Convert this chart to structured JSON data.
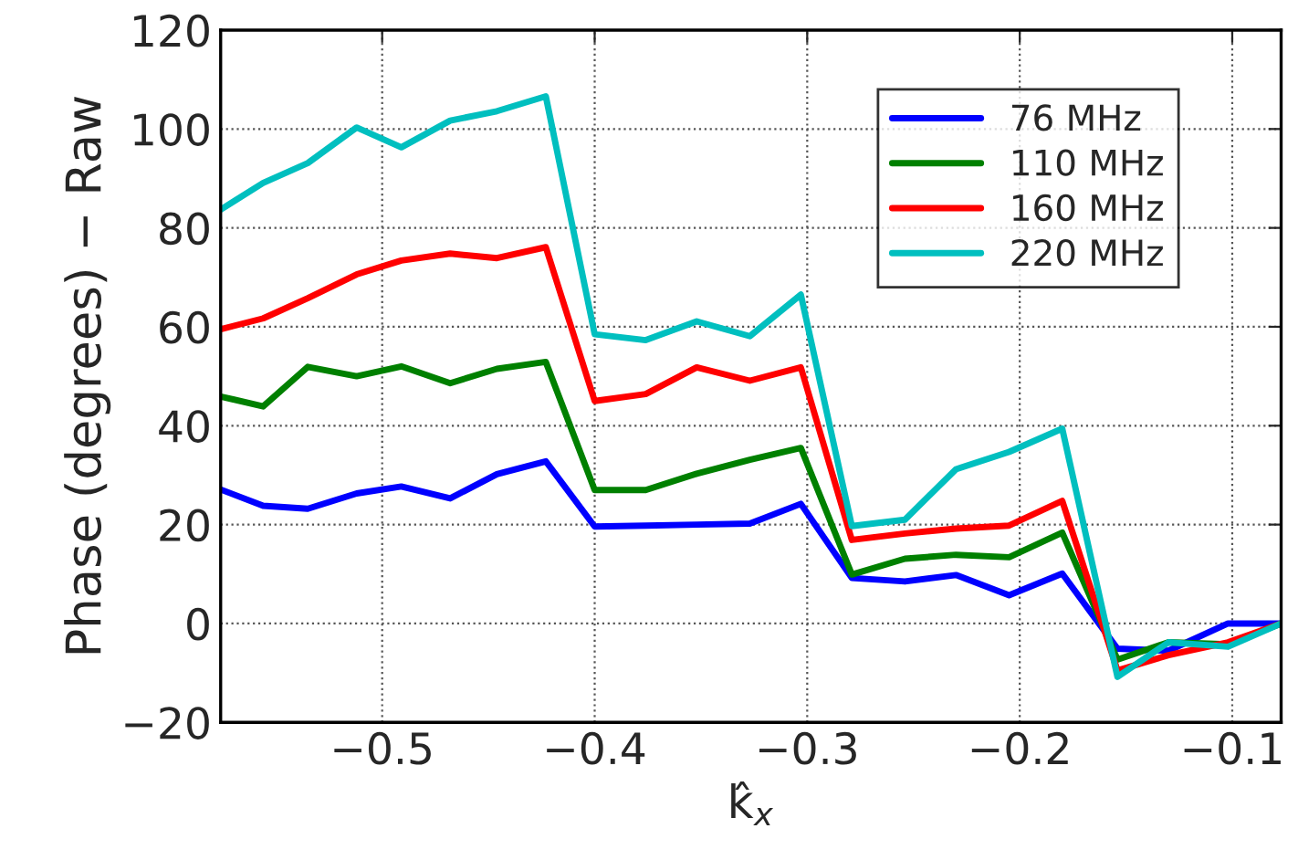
{
  "chart_data": {
    "type": "line",
    "xlabel": "k̂$_{x}$",
    "ylabel": "Phase (degrees) − Raw",
    "x": [
      -0.576,
      -0.556,
      -0.535,
      -0.512,
      -0.491,
      -0.468,
      -0.446,
      -0.423,
      -0.4,
      -0.376,
      -0.352,
      -0.327,
      -0.303,
      -0.279,
      -0.254,
      -0.23,
      -0.205,
      -0.18,
      -0.154,
      -0.13,
      -0.102,
      -0.077
    ],
    "series": [
      {
        "name": "76 MHz",
        "color": "#0000ff",
        "values": [
          27.1,
          23.8,
          23.2,
          26.3,
          27.7,
          25.3,
          30.2,
          32.8,
          19.6,
          19.8,
          20.0,
          20.2,
          24.2,
          9.2,
          8.5,
          9.8,
          5.7,
          10.1,
          -5.1,
          -5.5,
          0,
          0
        ]
      },
      {
        "name": "110 MHz",
        "color": "#008000",
        "values": [
          45.9,
          43.9,
          51.9,
          50.0,
          52.0,
          48.6,
          51.5,
          52.9,
          27.0,
          27.0,
          30.3,
          33.1,
          35.5,
          9.9,
          13.1,
          13.9,
          13.4,
          18.4,
          -7.3,
          -3.8,
          -4.2,
          0
        ]
      },
      {
        "name": "160 MHz",
        "color": "#ff0000",
        "values": [
          59.5,
          61.7,
          65.8,
          70.6,
          73.4,
          74.8,
          73.9,
          76.1,
          45.0,
          46.4,
          51.8,
          49.1,
          51.8,
          16.9,
          18.2,
          19.2,
          19.8,
          24.8,
          -9.5,
          -6.4,
          -3.8,
          0
        ]
      },
      {
        "name": "220 MHz",
        "color": "#00bfbf",
        "values": [
          83.7,
          89.1,
          93.1,
          100.3,
          96.3,
          101.7,
          103.6,
          106.6,
          58.5,
          57.3,
          61.1,
          58.1,
          66.5,
          19.7,
          21.0,
          31.2,
          34.7,
          39.4,
          -10.8,
          -3.8,
          -4.7,
          0
        ]
      }
    ],
    "xlim": [
      -0.576,
      -0.077
    ],
    "xticks": [
      {
        "value": -0.5,
        "label": "−0.5"
      },
      {
        "value": -0.4,
        "label": "−0.4"
      },
      {
        "value": -0.3,
        "label": "−0.3"
      },
      {
        "value": -0.2,
        "label": "−0.2"
      },
      {
        "value": -0.1,
        "label": "−0.1"
      }
    ],
    "ylim": [
      -20,
      120
    ],
    "yticks": [
      {
        "value": -20,
        "label": "−20"
      },
      0,
      20,
      40,
      60,
      80,
      100,
      120
    ],
    "grid": true,
    "legend": "top right",
    "marker": "none",
    "line_style": "solid"
  }
}
